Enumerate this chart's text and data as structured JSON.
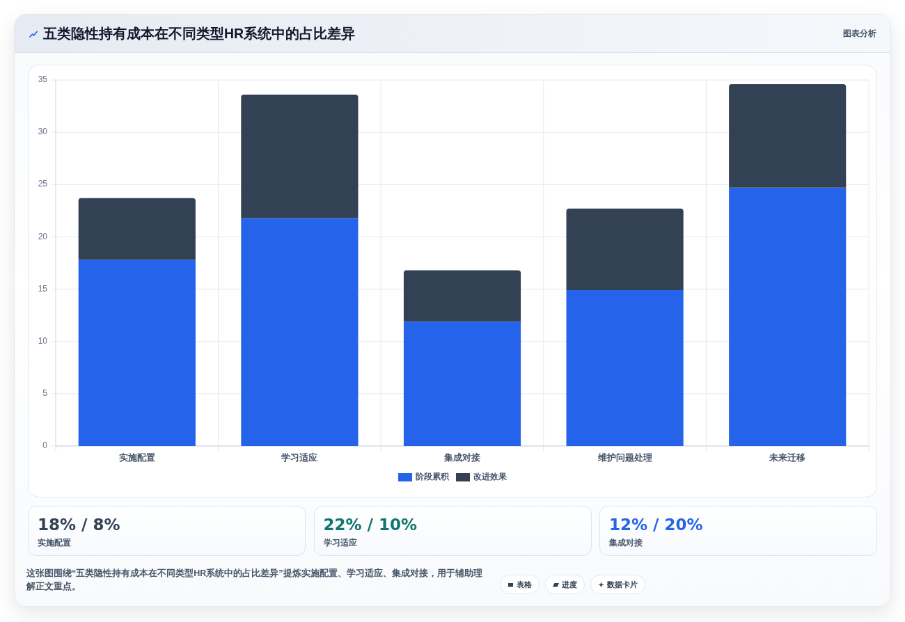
{
  "chart_data": [
    {
      "type": "bar",
      "title": "五类隐性持有成本在不同类型HR系统中的占比差异",
      "categories": [
        "实施配置",
        "学习适应",
        "集成对接",
        "维护问题处理",
        "未来迁移"
      ],
      "stacked": true,
      "series": [
        {
          "name": "阶段累积",
          "color": "#2563eb",
          "values": [
            17.8,
            21.8,
            11.9,
            14.9,
            24.7
          ]
        },
        {
          "name": "改进效果",
          "color": "#334155",
          "values": [
            5.9,
            11.8,
            4.9,
            7.8,
            9.9
          ]
        }
      ],
      "ylim": [
        0,
        35
      ],
      "yticks": [
        0,
        5,
        10,
        15,
        20,
        25,
        30,
        35
      ],
      "grid": true,
      "legend": "bottom",
      "annotations": [
        "图表分析",
        "这张图围绕“五类隐性持有成本在不同类型HR系统中的占比差异”提炼实施配置、学习适应、集成对接，用于辅助理解正文重点。",
        "表格",
        "进度",
        "数据卡片"
      ]
    },
    {
      "type": "other",
      "title": "18% / 8%",
      "subtitle": "实施配置"
    },
    {
      "type": "other",
      "title": "22% / 10%",
      "subtitle": "学习适应"
    },
    {
      "type": "other",
      "title": "12% / 20%",
      "subtitle": "集成对接"
    }
  ]
}
